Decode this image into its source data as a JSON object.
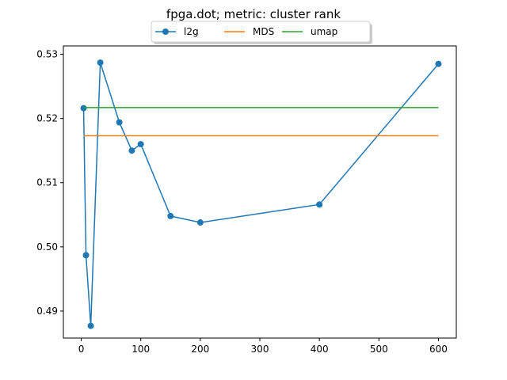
{
  "chart_data": {
    "type": "line",
    "title": "fpga.dot; metric: cluster rank",
    "xlabel": "",
    "ylabel": "",
    "xlim": [
      -30,
      630
    ],
    "ylim": [
      0.4858,
      0.5313
    ],
    "xticks": [
      0,
      100,
      200,
      300,
      400,
      500,
      600
    ],
    "yticks": [
      0.49,
      0.5,
      0.51,
      0.52,
      0.53
    ],
    "ytick_labels": [
      "0.49",
      "0.50",
      "0.51",
      "0.52",
      "0.53"
    ],
    "legend_position": "upper-center",
    "series": [
      {
        "name": "l2g",
        "color": "#1f77b4",
        "marker": "circle",
        "x": [
          4,
          8,
          16,
          32,
          64,
          85,
          100,
          150,
          200,
          400,
          600
        ],
        "y": [
          0.5216,
          0.4987,
          0.4877,
          0.5287,
          0.5194,
          0.515,
          0.516,
          0.5048,
          0.5038,
          0.5066,
          0.5285
        ]
      },
      {
        "name": "MDS",
        "color": "#ff7f0e",
        "marker": "none",
        "x": [
          4,
          600
        ],
        "y": [
          0.5173,
          0.5173
        ]
      },
      {
        "name": "umap",
        "color": "#2ca02c",
        "marker": "none",
        "x": [
          4,
          600
        ],
        "y": [
          0.5217,
          0.5217
        ]
      }
    ]
  }
}
